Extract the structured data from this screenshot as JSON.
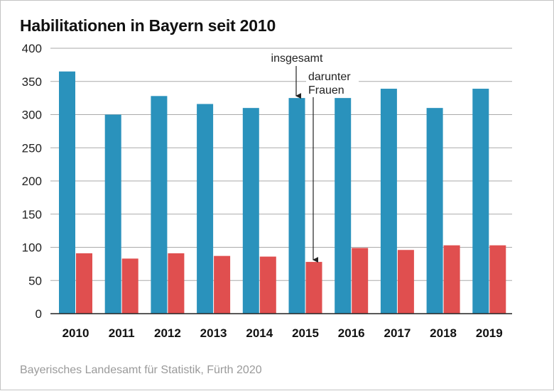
{
  "title": "Habilitationen in Bayern seit 2010",
  "source": "Bayerisches Landesamt für Statistik, Fürth 2020",
  "colors": {
    "total": "#2a92bc",
    "women": "#e04f4f",
    "grid": "#aaaaaa",
    "axis": "#222222"
  },
  "annotations": {
    "total": "insgesamt",
    "women_line1": "darunter",
    "women_line2": "Frauen"
  },
  "chart_data": {
    "type": "bar",
    "title": "Habilitationen in Bayern seit 2010",
    "categories": [
      "2010",
      "2011",
      "2012",
      "2013",
      "2014",
      "2015",
      "2016",
      "2017",
      "2018",
      "2019"
    ],
    "series": [
      {
        "name": "insgesamt",
        "values": [
          365,
          300,
          328,
          316,
          310,
          325,
          325,
          339,
          310,
          339
        ]
      },
      {
        "name": "darunter Frauen",
        "values": [
          91,
          83,
          91,
          87,
          86,
          78,
          99,
          96,
          103,
          103
        ]
      }
    ],
    "ylim": [
      0,
      400
    ],
    "yticks": [
      "0",
      "50",
      "100",
      "150",
      "200",
      "250",
      "300",
      "350",
      "400"
    ],
    "grid": true,
    "xlabel": "",
    "ylabel": ""
  }
}
